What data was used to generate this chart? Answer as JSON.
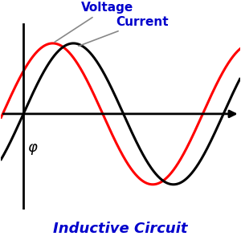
{
  "title": "Inductive Circuit",
  "title_color": "#0000cc",
  "title_fontsize": 13,
  "title_fontweight": "bold",
  "background_color": "#ffffff",
  "voltage_color": "#ff0000",
  "current_color": "#000000",
  "voltage_label": "Voltage",
  "current_label": "Current",
  "label_color": "#0000cc",
  "label_fontsize": 11,
  "phi_label": "φ",
  "phi_fontsize": 13,
  "phase_shift": 0.65,
  "amplitude": 1.0,
  "x_start": -0.7,
  "x_end": 6.8,
  "y_lim": [
    -1.35,
    1.55
  ],
  "x_lim": [
    -0.7,
    6.8
  ],
  "axis_color": "#000000",
  "linewidth_wave": 2.2,
  "linewidth_axis": 2.0
}
